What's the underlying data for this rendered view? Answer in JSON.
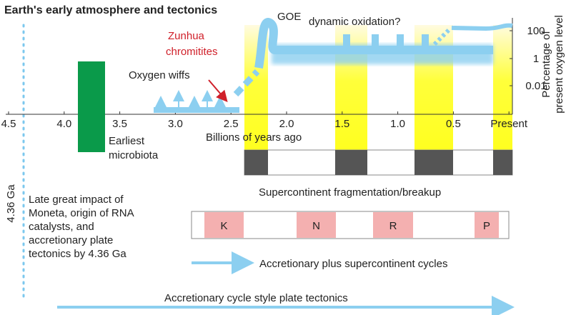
{
  "title": "Earth's early atmosphere and tectonics",
  "time_axis": {
    "label": "Billions of years ago",
    "ticks": [
      "4.5",
      "4.0",
      "3.5",
      "3.0",
      "2.5",
      "2.0",
      "1.5",
      "1.0",
      "0.5",
      "Present"
    ]
  },
  "oxygen_axis": {
    "label_lines": [
      "Percentage of",
      "present oxygen level"
    ],
    "ticks": [
      "100",
      "1",
      "0.01"
    ]
  },
  "annotations": {
    "goe": "GOE",
    "dynamic": "dynamic oxidation?",
    "zunhua": [
      "Zunhua",
      "chromitites"
    ],
    "wiffs": "Oxygen wiffs",
    "microbiota": [
      "Earliest",
      "microbiota"
    ],
    "impact_age": "4.36 Ga",
    "impact": [
      "Late great impact of",
      "Moneta, origin of RNA",
      "catalysts, and",
      "accretionary plate",
      "tectonics by 4.36 Ga"
    ],
    "breakup": "Supercontinent fragmentation/breakup",
    "cycles": "Accretionary plus supercontinent cycles",
    "style": "Accretionary cycle style plate tectonics"
  },
  "supercontinents": [
    "K",
    "N",
    "R",
    "P"
  ]
}
